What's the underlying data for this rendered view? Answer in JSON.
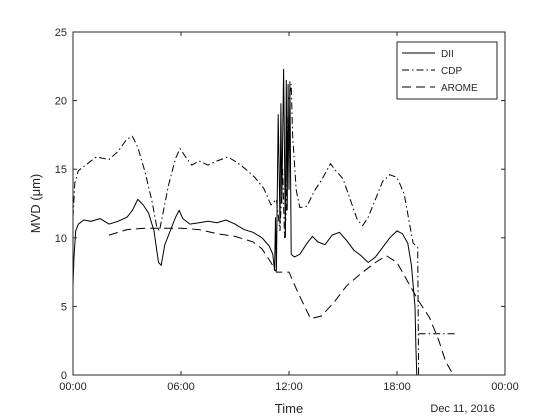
{
  "chart_data": {
    "type": "line",
    "title": "",
    "xlabel": "Time",
    "ylabel": "MVD (μm)",
    "annotation": "Dec 11, 2016",
    "xlim": [
      0,
      24
    ],
    "ylim": [
      0,
      25
    ],
    "x_ticks": [
      {
        "value": 0,
        "label": "00:00"
      },
      {
        "value": 6,
        "label": "06:00"
      },
      {
        "value": 12,
        "label": "12:00"
      },
      {
        "value": 18,
        "label": "18:00"
      },
      {
        "value": 24,
        "label": "00:00"
      }
    ],
    "y_ticks": [
      0,
      5,
      10,
      15,
      20,
      25
    ],
    "grid": false,
    "legend_position": "top-right",
    "colors": {
      "line": "#000000",
      "axis": "#262626"
    },
    "series": [
      {
        "name": "DII",
        "style": "solid",
        "points": [
          [
            0.0,
            6.5
          ],
          [
            0.05,
            8.5
          ],
          [
            0.15,
            10.5
          ],
          [
            0.3,
            11.0
          ],
          [
            0.6,
            11.3
          ],
          [
            1.0,
            11.2
          ],
          [
            1.5,
            11.4
          ],
          [
            2.0,
            11.0
          ],
          [
            2.5,
            11.2
          ],
          [
            3.0,
            11.5
          ],
          [
            3.3,
            12.0
          ],
          [
            3.6,
            12.8
          ],
          [
            3.9,
            12.4
          ],
          [
            4.2,
            11.8
          ],
          [
            4.5,
            10.5
          ],
          [
            4.75,
            8.2
          ],
          [
            4.9,
            8.0
          ],
          [
            5.1,
            9.5
          ],
          [
            5.4,
            10.5
          ],
          [
            5.7,
            11.5
          ],
          [
            5.9,
            12.0
          ],
          [
            6.1,
            11.4
          ],
          [
            6.5,
            11.0
          ],
          [
            7.0,
            11.1
          ],
          [
            7.5,
            11.2
          ],
          [
            8.0,
            11.1
          ],
          [
            8.5,
            11.3
          ],
          [
            9.0,
            11.0
          ],
          [
            9.5,
            10.6
          ],
          [
            10.0,
            10.4
          ],
          [
            10.5,
            10.0
          ],
          [
            10.9,
            9.4
          ],
          [
            11.1,
            8.8
          ],
          [
            11.2,
            7.6
          ],
          [
            11.25,
            11.5
          ],
          [
            11.3,
            7.6
          ],
          [
            11.4,
            19.0
          ],
          [
            11.5,
            11.0
          ],
          [
            11.55,
            19.8
          ],
          [
            11.6,
            12.5
          ],
          [
            11.7,
            22.3
          ],
          [
            11.8,
            10.0
          ],
          [
            11.85,
            21.5
          ],
          [
            11.9,
            12.0
          ],
          [
            11.95,
            21.2
          ],
          [
            12.0,
            13.5
          ],
          [
            12.05,
            21.4
          ],
          [
            12.12,
            8.8
          ],
          [
            12.3,
            8.6
          ],
          [
            12.6,
            8.8
          ],
          [
            13.0,
            9.6
          ],
          [
            13.3,
            10.1
          ],
          [
            13.6,
            9.7
          ],
          [
            14.0,
            9.5
          ],
          [
            14.4,
            10.2
          ],
          [
            14.8,
            10.4
          ],
          [
            15.2,
            9.8
          ],
          [
            15.6,
            9.1
          ],
          [
            16.0,
            8.7
          ],
          [
            16.4,
            8.2
          ],
          [
            16.8,
            8.6
          ],
          [
            17.2,
            9.3
          ],
          [
            17.6,
            10.0
          ],
          [
            18.0,
            10.5
          ],
          [
            18.3,
            10.3
          ],
          [
            18.6,
            9.6
          ],
          [
            18.8,
            8.0
          ],
          [
            18.9,
            6.5
          ],
          [
            19.0,
            5.0
          ],
          [
            19.05,
            2.0
          ],
          [
            19.1,
            0.0
          ]
        ]
      },
      {
        "name": "CDP",
        "style": "dashdot",
        "points": [
          [
            0.0,
            11.5
          ],
          [
            0.1,
            14.0
          ],
          [
            0.3,
            14.9
          ],
          [
            0.8,
            15.4
          ],
          [
            1.3,
            15.9
          ],
          [
            2.0,
            15.7
          ],
          [
            2.5,
            16.3
          ],
          [
            3.0,
            17.2
          ],
          [
            3.3,
            17.4
          ],
          [
            3.6,
            16.6
          ],
          [
            4.0,
            14.8
          ],
          [
            4.4,
            12.6
          ],
          [
            4.65,
            10.8
          ],
          [
            4.8,
            10.5
          ],
          [
            5.0,
            11.8
          ],
          [
            5.3,
            13.8
          ],
          [
            5.7,
            15.8
          ],
          [
            5.95,
            16.5
          ],
          [
            6.2,
            16.0
          ],
          [
            6.6,
            15.3
          ],
          [
            7.0,
            15.6
          ],
          [
            7.5,
            15.3
          ],
          [
            8.0,
            15.6
          ],
          [
            8.6,
            15.9
          ],
          [
            9.1,
            15.5
          ],
          [
            9.6,
            15.0
          ],
          [
            10.1,
            14.4
          ],
          [
            10.6,
            13.6
          ],
          [
            11.0,
            12.4
          ],
          [
            11.3,
            12.8
          ],
          [
            11.5,
            10.5
          ],
          [
            11.65,
            15.0
          ],
          [
            11.75,
            10.0
          ],
          [
            11.85,
            12.0
          ],
          [
            11.95,
            20.0
          ],
          [
            12.05,
            20.5
          ],
          [
            12.12,
            21.2
          ],
          [
            12.2,
            17.5
          ],
          [
            12.4,
            13.5
          ],
          [
            12.6,
            12.2
          ],
          [
            13.0,
            12.3
          ],
          [
            13.4,
            13.4
          ],
          [
            13.8,
            14.2
          ],
          [
            14.1,
            14.9
          ],
          [
            14.3,
            15.4
          ],
          [
            14.6,
            14.9
          ],
          [
            15.0,
            14.3
          ],
          [
            15.4,
            12.8
          ],
          [
            15.8,
            11.3
          ],
          [
            16.1,
            10.9
          ],
          [
            16.4,
            11.5
          ],
          [
            16.8,
            12.8
          ],
          [
            17.2,
            14.1
          ],
          [
            17.6,
            14.6
          ],
          [
            18.0,
            14.4
          ],
          [
            18.4,
            13.2
          ],
          [
            18.7,
            11.0
          ],
          [
            18.9,
            9.6
          ],
          [
            19.15,
            9.3
          ],
          [
            19.2,
            0.0
          ]
        ]
      },
      {
        "name": "AROME",
        "style": "dashed",
        "points": [
          [
            2.0,
            10.2
          ],
          [
            3.0,
            10.6
          ],
          [
            4.0,
            10.7
          ],
          [
            5.0,
            10.7
          ],
          [
            6.0,
            10.7
          ],
          [
            7.0,
            10.6
          ],
          [
            8.0,
            10.3
          ],
          [
            9.0,
            10.1
          ],
          [
            10.0,
            9.7
          ],
          [
            10.5,
            9.2
          ],
          [
            11.0,
            8.2
          ],
          [
            11.3,
            7.5
          ],
          [
            12.0,
            7.5
          ],
          [
            12.5,
            6.0
          ],
          [
            13.2,
            4.1
          ],
          [
            13.8,
            4.3
          ],
          [
            14.5,
            5.3
          ],
          [
            15.2,
            6.5
          ],
          [
            16.0,
            7.4
          ],
          [
            16.8,
            8.2
          ],
          [
            17.4,
            8.7
          ],
          [
            18.0,
            8.2
          ],
          [
            18.6,
            6.8
          ],
          [
            19.2,
            5.4
          ],
          [
            19.8,
            4.2
          ],
          [
            20.3,
            2.6
          ],
          [
            20.7,
            1.0
          ],
          [
            21.0,
            0.3
          ],
          [
            21.2,
            0.0
          ]
        ]
      },
      {
        "name": "",
        "style": "dashdot",
        "points": [
          [
            19.2,
            3.0
          ],
          [
            21.2,
            3.0
          ]
        ]
      }
    ]
  }
}
